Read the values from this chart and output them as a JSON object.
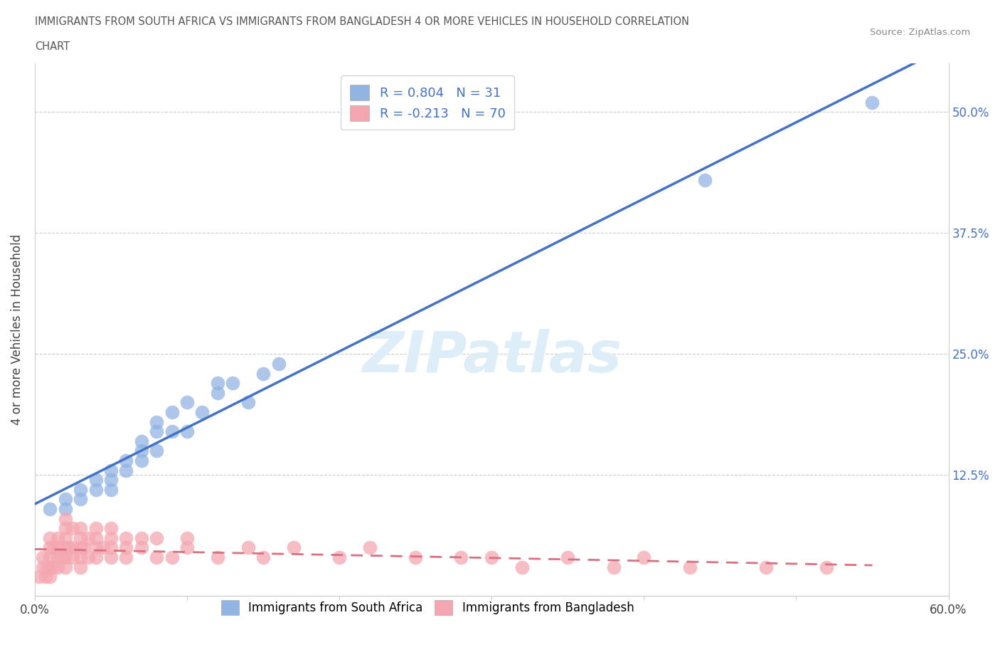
{
  "title_line1": "IMMIGRANTS FROM SOUTH AFRICA VS IMMIGRANTS FROM BANGLADESH 4 OR MORE VEHICLES IN HOUSEHOLD CORRELATION",
  "title_line2": "CHART",
  "source": "Source: ZipAtlas.com",
  "ylabel": "4 or more Vehicles in Household",
  "xlim": [
    0,
    0.6
  ],
  "ylim": [
    0,
    0.55
  ],
  "xtick_pos": [
    0.0,
    0.1,
    0.2,
    0.3,
    0.4,
    0.5,
    0.6
  ],
  "xticklabels": [
    "0.0%",
    "",
    "",
    "",
    "",
    "",
    "60.0%"
  ],
  "ytick_positions": [
    0.0,
    0.125,
    0.25,
    0.375,
    0.5
  ],
  "ytick_labels": [
    "",
    "12.5%",
    "25.0%",
    "37.5%",
    "50.0%"
  ],
  "R_sa": 0.804,
  "N_sa": 31,
  "R_bd": -0.213,
  "N_bd": 70,
  "color_sa": "#92b4e3",
  "color_bd": "#f4a7b0",
  "trendline_sa": "#4472c4",
  "trendline_bd": "#d97080",
  "watermark": "ZIPatlas",
  "watermark_color": "#ddeef8",
  "sa_x": [
    0.01,
    0.02,
    0.02,
    0.03,
    0.03,
    0.04,
    0.04,
    0.05,
    0.05,
    0.05,
    0.06,
    0.06,
    0.07,
    0.07,
    0.07,
    0.08,
    0.08,
    0.08,
    0.09,
    0.09,
    0.1,
    0.1,
    0.11,
    0.12,
    0.12,
    0.13,
    0.14,
    0.15,
    0.16,
    0.44,
    0.55
  ],
  "sa_y": [
    0.09,
    0.09,
    0.1,
    0.1,
    0.11,
    0.11,
    0.12,
    0.11,
    0.12,
    0.13,
    0.13,
    0.14,
    0.14,
    0.15,
    0.16,
    0.15,
    0.17,
    0.18,
    0.17,
    0.19,
    0.17,
    0.2,
    0.19,
    0.21,
    0.22,
    0.22,
    0.2,
    0.23,
    0.24,
    0.43,
    0.51
  ],
  "bd_x": [
    0.003,
    0.005,
    0.005,
    0.007,
    0.008,
    0.01,
    0.01,
    0.01,
    0.01,
    0.01,
    0.012,
    0.012,
    0.015,
    0.015,
    0.015,
    0.015,
    0.018,
    0.02,
    0.02,
    0.02,
    0.02,
    0.02,
    0.02,
    0.022,
    0.025,
    0.025,
    0.025,
    0.03,
    0.03,
    0.03,
    0.03,
    0.03,
    0.032,
    0.035,
    0.035,
    0.04,
    0.04,
    0.04,
    0.04,
    0.045,
    0.05,
    0.05,
    0.05,
    0.05,
    0.06,
    0.06,
    0.06,
    0.07,
    0.07,
    0.08,
    0.08,
    0.09,
    0.1,
    0.1,
    0.12,
    0.14,
    0.15,
    0.17,
    0.2,
    0.22,
    0.25,
    0.28,
    0.3,
    0.32,
    0.35,
    0.38,
    0.4,
    0.43,
    0.48,
    0.52
  ],
  "bd_y": [
    0.02,
    0.03,
    0.04,
    0.02,
    0.03,
    0.02,
    0.03,
    0.04,
    0.05,
    0.06,
    0.03,
    0.05,
    0.03,
    0.04,
    0.05,
    0.06,
    0.04,
    0.03,
    0.04,
    0.05,
    0.06,
    0.07,
    0.08,
    0.05,
    0.04,
    0.05,
    0.07,
    0.03,
    0.04,
    0.05,
    0.06,
    0.07,
    0.05,
    0.04,
    0.06,
    0.04,
    0.05,
    0.06,
    0.07,
    0.05,
    0.04,
    0.05,
    0.06,
    0.07,
    0.04,
    0.05,
    0.06,
    0.05,
    0.06,
    0.04,
    0.06,
    0.04,
    0.05,
    0.06,
    0.04,
    0.05,
    0.04,
    0.05,
    0.04,
    0.05,
    0.04,
    0.04,
    0.04,
    0.03,
    0.04,
    0.03,
    0.04,
    0.03,
    0.03,
    0.03
  ],
  "legend_sa_label": "Immigrants from South Africa",
  "legend_bd_label": "Immigrants from Bangladesh",
  "background_color": "#ffffff",
  "grid_color": "#cccccc"
}
